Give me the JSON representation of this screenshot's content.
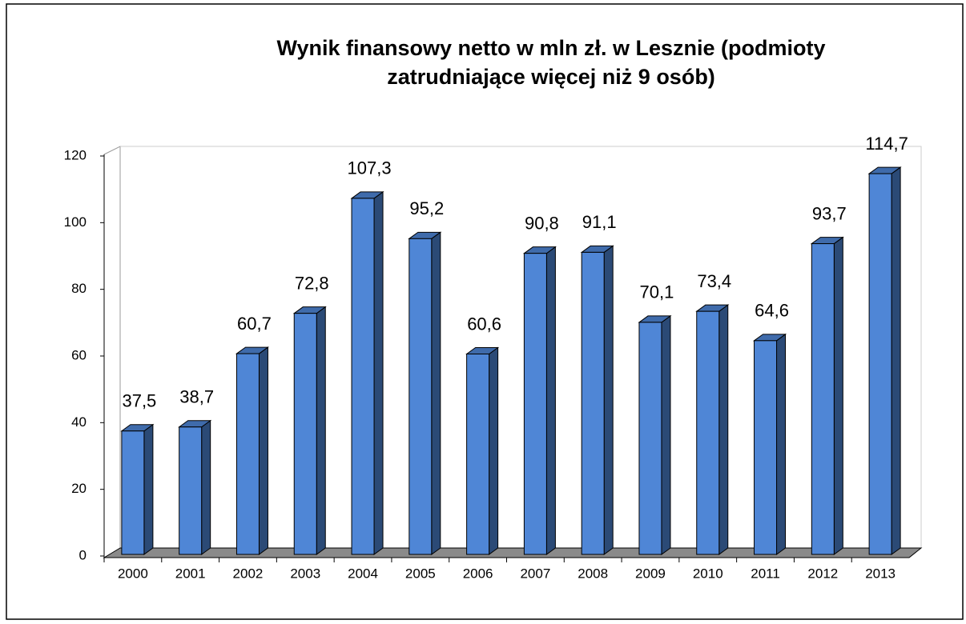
{
  "chart_data": {
    "type": "bar3d",
    "title": [
      "Wynik finansowy netto w mln zł. w Lesznie (podmioty",
      "zatrudniające więcej niż 9 osób)"
    ],
    "categories": [
      "2000",
      "2001",
      "2002",
      "2003",
      "2004",
      "2005",
      "2006",
      "2007",
      "2008",
      "2009",
      "2010",
      "2011",
      "2012",
      "2013"
    ],
    "values": [
      37.5,
      38.7,
      60.7,
      72.8,
      107.3,
      95.2,
      60.6,
      90.8,
      91.1,
      70.1,
      73.4,
      64.6,
      93.7,
      114.7
    ],
    "value_labels": [
      "37,5",
      "38,7",
      "60,7",
      "72,8",
      "107,3",
      "95,2",
      "60,6",
      "90,8",
      "91,1",
      "70,1",
      "73,4",
      "64,6",
      "93,7",
      "114,7"
    ],
    "color": "#4f86d6",
    "ylim": [
      0,
      120
    ],
    "yticks": [
      0,
      20,
      40,
      60,
      80,
      100,
      120
    ]
  }
}
